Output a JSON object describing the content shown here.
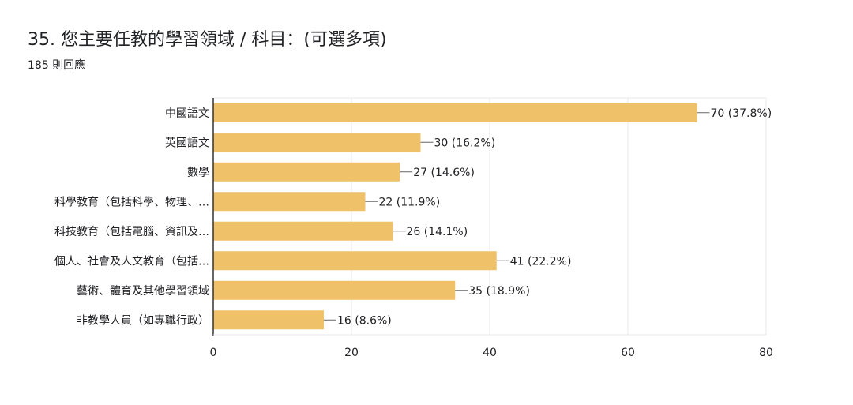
{
  "question": {
    "title": "35. 您主要任教的學習領域 / 科目：(可選多項)",
    "responses": "185 則回應"
  },
  "colors": {
    "bar": "#efc168",
    "grid": "#e8e8e8",
    "axis": "#333333",
    "text": "#202124"
  },
  "chart_data": {
    "type": "bar",
    "orientation": "horizontal",
    "categories": [
      "中國語文",
      "英國語文",
      "數學",
      "科學教育（包括科學、物理、…",
      "科技教育（包括電腦、資訊及…",
      "個人、社會及人文教育（包括…",
      "藝術、體育及其他學習領域",
      "非教學人員（如專職行政）"
    ],
    "values": [
      70,
      30,
      27,
      22,
      26,
      41,
      35,
      16
    ],
    "data_labels": [
      "70 (37.8%)",
      "30 (16.2%)",
      "27 (14.6%)",
      "22 (11.9%)",
      "26 (14.1%)",
      "41 (22.2%)",
      "35 (18.9%)",
      "16 (8.6%)"
    ],
    "xlim": [
      0,
      80
    ],
    "xticks": [
      "0",
      "20",
      "40",
      "60",
      "80"
    ],
    "grid": true,
    "legend": "none"
  }
}
